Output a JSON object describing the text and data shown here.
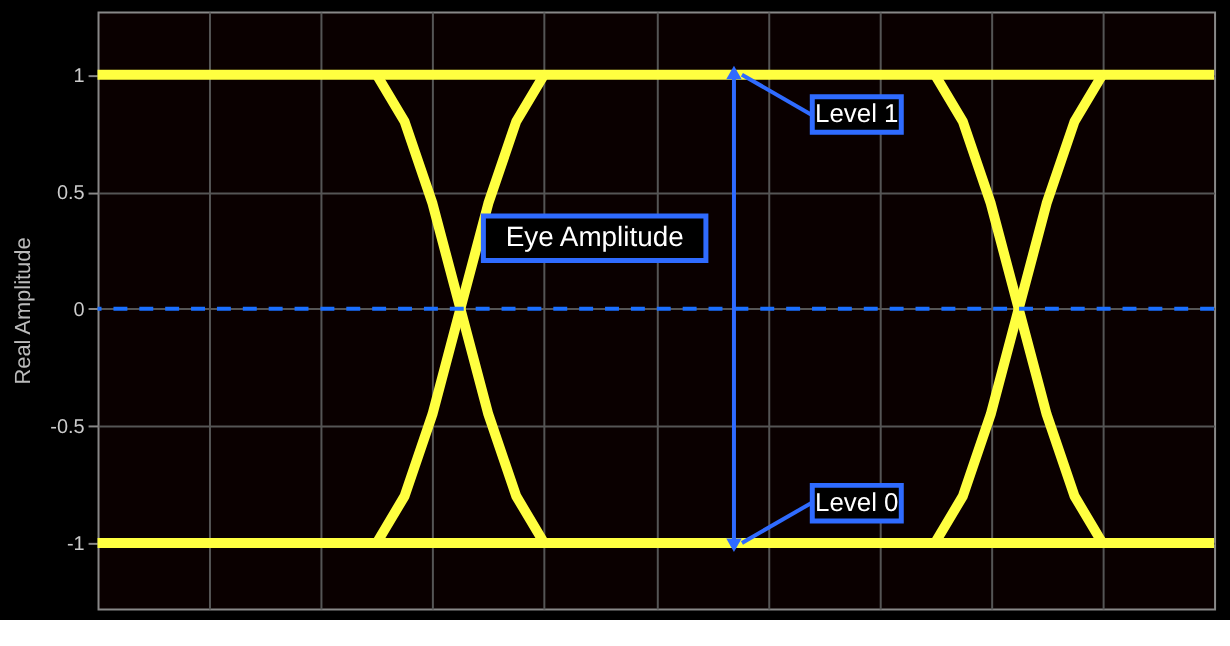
{
  "chart_data": {
    "type": "line",
    "ylabel": "Real Amplitude",
    "categories": [
      null,
      null,
      null,
      null,
      null,
      null,
      null,
      null,
      null,
      null,
      null,
      null,
      null,
      null,
      null,
      null,
      null,
      null,
      null,
      null,
      null,
      null,
      null,
      null,
      null,
      null,
      null,
      null,
      null,
      null,
      null,
      null,
      null,
      null,
      null,
      null,
      null,
      null,
      null,
      null,
      null
    ],
    "ylim": [
      -1.28,
      1.27
    ],
    "yticks": [
      -1,
      -0.5,
      0,
      0.5,
      1
    ],
    "grid": true,
    "tick_labels": "y",
    "legend": false,
    "series": [
      {
        "color": "#ffff40",
        "values": [
          1,
          1,
          1,
          1,
          1,
          1,
          1,
          1,
          1,
          1,
          1,
          1,
          1,
          1,
          1,
          1,
          1,
          1,
          1,
          1,
          1,
          1,
          1,
          1,
          1,
          1,
          1,
          1,
          1,
          1,
          1,
          1,
          1,
          1,
          1,
          1,
          1,
          1,
          1,
          1,
          1
        ]
      },
      {
        "color": "#ffff40",
        "values": [
          -1,
          -1,
          -1,
          -1,
          -1,
          -1,
          -1,
          -1,
          -1,
          -1,
          -1,
          -1,
          -1,
          -1,
          -1,
          -1,
          -1,
          -1,
          -1,
          -1,
          -1,
          -1,
          -1,
          -1,
          -1,
          -1,
          -1,
          -1,
          -1,
          -1,
          -1,
          -1,
          -1,
          -1,
          -1,
          -1,
          -1,
          -1,
          -1,
          -1,
          -1
        ]
      },
      {
        "color": "#ffff40",
        "values": [
          null,
          null,
          null,
          null,
          null,
          null,
          null,
          null,
          null,
          null,
          1,
          0.8,
          0.45,
          0,
          -0.45,
          -0.8,
          -1,
          null,
          null,
          null,
          null,
          null,
          null,
          null,
          null,
          null,
          null,
          null,
          null,
          null,
          -1,
          -0.8,
          -0.45,
          0,
          0.45,
          0.8,
          1,
          null,
          null,
          null,
          null
        ]
      },
      {
        "color": "#ffff40",
        "values": [
          null,
          null,
          null,
          null,
          null,
          null,
          null,
          null,
          null,
          null,
          -1,
          -0.8,
          -0.45,
          0,
          0.45,
          0.8,
          1,
          null,
          null,
          null,
          null,
          null,
          null,
          null,
          null,
          null,
          null,
          null,
          null,
          null,
          1,
          0.8,
          0.45,
          0,
          -0.45,
          -0.8,
          -1,
          null,
          null,
          null,
          null
        ]
      }
    ],
    "ref_lines": [
      {
        "axis": "y",
        "value": 0,
        "color": "#1a6fff",
        "line_style": "dashed"
      }
    ],
    "annotations": [
      "Level 1",
      "Eye Amplitude",
      "Level 0"
    ]
  }
}
